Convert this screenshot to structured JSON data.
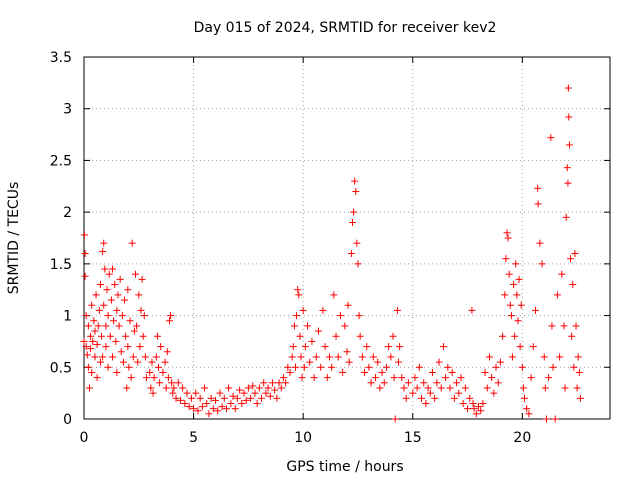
{
  "chart_data": {
    "type": "scatter",
    "title": "Day 015 of 2024, SRMTID for receiver kev2",
    "xlabel": "GPS time / hours",
    "ylabel": "SRMTID / TECUs",
    "xlim": [
      0,
      24
    ],
    "ylim": [
      0,
      3.5
    ],
    "xticks": [
      0,
      5,
      10,
      15,
      20
    ],
    "xtick_labels": [
      "0",
      "5",
      "10",
      "15",
      "20"
    ],
    "yticks": [
      0,
      0.5,
      1,
      1.5,
      2,
      2.5,
      3,
      3.5
    ],
    "ytick_labels": [
      "0",
      "0.5",
      "1",
      "1.5",
      "2",
      "2.5",
      "3",
      "3.5"
    ],
    "grid": true,
    "marker": "+",
    "color": "#ff0000",
    "series": [
      {
        "name": "SRMTID",
        "points": [
          [
            0.0,
            0.75
          ],
          [
            0.02,
            1.78
          ],
          [
            0.05,
            1.6
          ],
          [
            0.05,
            1.38
          ],
          [
            0.1,
            1.0
          ],
          [
            0.1,
            0.7
          ],
          [
            0.15,
            0.62
          ],
          [
            0.2,
            0.9
          ],
          [
            0.2,
            0.5
          ],
          [
            0.25,
            0.3
          ],
          [
            0.3,
            0.8
          ],
          [
            0.3,
            0.68
          ],
          [
            0.35,
            1.1
          ],
          [
            0.35,
            0.45
          ],
          [
            0.4,
            0.75
          ],
          [
            0.45,
            0.95
          ],
          [
            0.5,
            0.6
          ],
          [
            0.5,
            0.85
          ],
          [
            0.55,
            1.2
          ],
          [
            0.6,
            0.4
          ],
          [
            0.6,
            0.72
          ],
          [
            0.65,
            0.9
          ],
          [
            0.7,
            1.05
          ],
          [
            0.75,
            1.3
          ],
          [
            0.75,
            0.55
          ],
          [
            0.8,
            0.8
          ],
          [
            0.85,
            1.62
          ],
          [
            0.85,
            0.6
          ],
          [
            0.9,
            1.7
          ],
          [
            0.9,
            1.1
          ],
          [
            0.95,
            1.45
          ],
          [
            1.0,
            0.9
          ],
          [
            1.0,
            0.7
          ],
          [
            1.05,
            1.25
          ],
          [
            1.1,
            0.5
          ],
          [
            1.1,
            1.0
          ],
          [
            1.15,
            1.4
          ],
          [
            1.2,
            0.8
          ],
          [
            1.25,
            1.15
          ],
          [
            1.3,
            0.6
          ],
          [
            1.3,
            1.45
          ],
          [
            1.35,
            0.95
          ],
          [
            1.4,
            1.3
          ],
          [
            1.45,
            0.75
          ],
          [
            1.5,
            1.05
          ],
          [
            1.5,
            0.45
          ],
          [
            1.55,
            1.2
          ],
          [
            1.6,
            0.9
          ],
          [
            1.65,
            1.35
          ],
          [
            1.7,
            0.65
          ],
          [
            1.75,
            1.0
          ],
          [
            1.8,
            0.55
          ],
          [
            1.85,
            1.15
          ],
          [
            1.9,
            0.8
          ],
          [
            1.95,
            0.3
          ],
          [
            2.0,
            0.7
          ],
          [
            2.0,
            1.25
          ],
          [
            2.05,
            0.5
          ],
          [
            2.1,
            0.95
          ],
          [
            2.15,
            0.4
          ],
          [
            2.2,
            1.7
          ],
          [
            2.25,
            0.6
          ],
          [
            2.3,
            0.85
          ],
          [
            2.35,
            1.4
          ],
          [
            2.4,
            0.9
          ],
          [
            2.45,
            0.55
          ],
          [
            2.5,
            1.2
          ],
          [
            2.55,
            0.7
          ],
          [
            2.6,
            1.05
          ],
          [
            2.65,
            1.35
          ],
          [
            2.7,
            0.8
          ],
          [
            2.75,
            1.0
          ],
          [
            2.8,
            0.6
          ],
          [
            2.85,
            0.4
          ],
          [
            3.0,
            0.45
          ],
          [
            3.05,
            0.3
          ],
          [
            3.1,
            0.55
          ],
          [
            3.15,
            0.25
          ],
          [
            3.2,
            0.4
          ],
          [
            3.3,
            0.6
          ],
          [
            3.35,
            0.8
          ],
          [
            3.4,
            0.5
          ],
          [
            3.45,
            0.35
          ],
          [
            3.5,
            0.7
          ],
          [
            3.6,
            0.45
          ],
          [
            3.7,
            0.55
          ],
          [
            3.75,
            0.3
          ],
          [
            3.8,
            0.65
          ],
          [
            3.85,
            0.4
          ],
          [
            3.9,
            0.95
          ],
          [
            3.95,
            1.0
          ],
          [
            4.0,
            0.35
          ],
          [
            4.05,
            0.25
          ],
          [
            4.1,
            0.3
          ],
          [
            4.2,
            0.2
          ],
          [
            4.3,
            0.35
          ],
          [
            4.4,
            0.18
          ],
          [
            4.5,
            0.3
          ],
          [
            4.6,
            0.15
          ],
          [
            4.7,
            0.25
          ],
          [
            4.8,
            0.12
          ],
          [
            4.9,
            0.2
          ],
          [
            5.0,
            0.1
          ],
          [
            5.1,
            0.25
          ],
          [
            5.2,
            0.08
          ],
          [
            5.3,
            0.2
          ],
          [
            5.4,
            0.12
          ],
          [
            5.5,
            0.3
          ],
          [
            5.6,
            0.15
          ],
          [
            5.7,
            0.05
          ],
          [
            5.8,
            0.2
          ],
          [
            5.9,
            0.1
          ],
          [
            6.0,
            0.18
          ],
          [
            6.1,
            0.08
          ],
          [
            6.2,
            0.25
          ],
          [
            6.3,
            0.12
          ],
          [
            6.4,
            0.2
          ],
          [
            6.5,
            0.1
          ],
          [
            6.6,
            0.3
          ],
          [
            6.7,
            0.15
          ],
          [
            6.8,
            0.22
          ],
          [
            6.9,
            0.1
          ],
          [
            7.0,
            0.2
          ],
          [
            7.1,
            0.28
          ],
          [
            7.2,
            0.15
          ],
          [
            7.3,
            0.25
          ],
          [
            7.4,
            0.18
          ],
          [
            7.5,
            0.3
          ],
          [
            7.6,
            0.2
          ],
          [
            7.7,
            0.32
          ],
          [
            7.8,
            0.25
          ],
          [
            7.9,
            0.15
          ],
          [
            8.0,
            0.3
          ],
          [
            8.1,
            0.2
          ],
          [
            8.2,
            0.35
          ],
          [
            8.3,
            0.25
          ],
          [
            8.4,
            0.3
          ],
          [
            8.5,
            0.22
          ],
          [
            8.6,
            0.35
          ],
          [
            8.7,
            0.28
          ],
          [
            8.8,
            0.2
          ],
          [
            8.9,
            0.35
          ],
          [
            9.0,
            0.3
          ],
          [
            9.1,
            0.4
          ],
          [
            9.2,
            0.35
          ],
          [
            9.3,
            0.5
          ],
          [
            9.4,
            0.45
          ],
          [
            9.5,
            0.6
          ],
          [
            9.55,
            0.7
          ],
          [
            9.6,
            0.9
          ],
          [
            9.65,
            0.5
          ],
          [
            9.7,
            1.0
          ],
          [
            9.75,
            1.25
          ],
          [
            9.8,
            1.2
          ],
          [
            9.85,
            0.8
          ],
          [
            9.9,
            0.6
          ],
          [
            9.95,
            0.4
          ],
          [
            10.0,
            1.05
          ],
          [
            10.05,
            0.5
          ],
          [
            10.1,
            0.7
          ],
          [
            10.2,
            0.9
          ],
          [
            10.3,
            0.55
          ],
          [
            10.4,
            0.75
          ],
          [
            10.5,
            0.4
          ],
          [
            10.6,
            0.6
          ],
          [
            10.7,
            0.85
          ],
          [
            10.8,
            0.5
          ],
          [
            10.9,
            1.05
          ],
          [
            11.0,
            0.7
          ],
          [
            11.1,
            0.4
          ],
          [
            11.2,
            0.6
          ],
          [
            11.3,
            0.5
          ],
          [
            11.4,
            1.2
          ],
          [
            11.5,
            0.8
          ],
          [
            11.6,
            0.6
          ],
          [
            11.7,
            1.0
          ],
          [
            11.8,
            0.45
          ],
          [
            11.9,
            0.9
          ],
          [
            12.0,
            0.65
          ],
          [
            12.05,
            1.1
          ],
          [
            12.1,
            0.55
          ],
          [
            12.2,
            1.6
          ],
          [
            12.25,
            1.9
          ],
          [
            12.3,
            2.0
          ],
          [
            12.35,
            2.3
          ],
          [
            12.4,
            2.2
          ],
          [
            12.45,
            1.7
          ],
          [
            12.5,
            1.5
          ],
          [
            12.55,
            1.0
          ],
          [
            12.6,
            0.8
          ],
          [
            12.7,
            0.6
          ],
          [
            12.8,
            0.45
          ],
          [
            12.9,
            0.7
          ],
          [
            13.0,
            0.5
          ],
          [
            13.1,
            0.35
          ],
          [
            13.2,
            0.6
          ],
          [
            13.3,
            0.4
          ],
          [
            13.4,
            0.55
          ],
          [
            13.5,
            0.3
          ],
          [
            13.6,
            0.45
          ],
          [
            13.7,
            0.35
          ],
          [
            13.8,
            0.5
          ],
          [
            13.9,
            0.7
          ],
          [
            14.0,
            0.6
          ],
          [
            14.1,
            0.8
          ],
          [
            14.15,
            0.4
          ],
          [
            14.2,
            0.0
          ],
          [
            14.3,
            1.05
          ],
          [
            14.35,
            0.55
          ],
          [
            14.4,
            0.7
          ],
          [
            14.5,
            0.4
          ],
          [
            14.6,
            0.3
          ],
          [
            14.7,
            0.2
          ],
          [
            14.8,
            0.35
          ],
          [
            15.0,
            0.25
          ],
          [
            15.1,
            0.4
          ],
          [
            15.2,
            0.3
          ],
          [
            15.3,
            0.5
          ],
          [
            15.4,
            0.2
          ],
          [
            15.5,
            0.35
          ],
          [
            15.6,
            0.15
          ],
          [
            15.7,
            0.3
          ],
          [
            15.8,
            0.25
          ],
          [
            15.9,
            0.45
          ],
          [
            16.0,
            0.2
          ],
          [
            16.1,
            0.35
          ],
          [
            16.2,
            0.55
          ],
          [
            16.3,
            0.3
          ],
          [
            16.4,
            0.7
          ],
          [
            16.5,
            0.4
          ],
          [
            16.6,
            0.5
          ],
          [
            16.7,
            0.3
          ],
          [
            16.8,
            0.45
          ],
          [
            16.9,
            0.2
          ],
          [
            17.0,
            0.35
          ],
          [
            17.1,
            0.25
          ],
          [
            17.2,
            0.4
          ],
          [
            17.3,
            0.15
          ],
          [
            17.4,
            0.3
          ],
          [
            17.5,
            0.1
          ],
          [
            17.6,
            0.2
          ],
          [
            17.7,
            1.05
          ],
          [
            17.75,
            0.15
          ],
          [
            17.8,
            0.1
          ],
          [
            17.9,
            0.05
          ],
          [
            18.0,
            0.12
          ],
          [
            18.1,
            0.08
          ],
          [
            18.2,
            0.15
          ],
          [
            18.3,
            0.45
          ],
          [
            18.4,
            0.3
          ],
          [
            18.5,
            0.6
          ],
          [
            18.6,
            0.4
          ],
          [
            18.7,
            0.25
          ],
          [
            18.8,
            0.5
          ],
          [
            18.9,
            0.35
          ],
          [
            19.0,
            0.55
          ],
          [
            19.1,
            0.8
          ],
          [
            19.2,
            1.2
          ],
          [
            19.25,
            1.55
          ],
          [
            19.3,
            1.8
          ],
          [
            19.35,
            1.75
          ],
          [
            19.4,
            1.4
          ],
          [
            19.45,
            1.1
          ],
          [
            19.5,
            1.0
          ],
          [
            19.55,
            0.6
          ],
          [
            19.6,
            1.3
          ],
          [
            19.65,
            0.8
          ],
          [
            19.7,
            1.5
          ],
          [
            19.75,
            1.2
          ],
          [
            19.8,
            0.95
          ],
          [
            19.85,
            1.35
          ],
          [
            19.9,
            0.7
          ],
          [
            19.95,
            1.1
          ],
          [
            20.0,
            0.5
          ],
          [
            20.05,
            0.3
          ],
          [
            20.1,
            0.2
          ],
          [
            20.2,
            0.1
          ],
          [
            20.3,
            0.05
          ],
          [
            20.4,
            0.4
          ],
          [
            20.5,
            0.7
          ],
          [
            20.6,
            1.05
          ],
          [
            20.7,
            2.23
          ],
          [
            20.72,
            2.08
          ],
          [
            20.8,
            1.7
          ],
          [
            20.9,
            1.5
          ],
          [
            21.0,
            0.6
          ],
          [
            21.05,
            0.3
          ],
          [
            21.1,
            0.0
          ],
          [
            21.2,
            0.4
          ],
          [
            21.3,
            2.72
          ],
          [
            21.35,
            0.9
          ],
          [
            21.4,
            0.5
          ],
          [
            21.5,
            0.0
          ],
          [
            21.6,
            1.2
          ],
          [
            21.7,
            0.6
          ],
          [
            21.8,
            1.4
          ],
          [
            21.9,
            0.9
          ],
          [
            21.95,
            0.3
          ],
          [
            22.0,
            1.95
          ],
          [
            22.05,
            2.43
          ],
          [
            22.08,
            2.28
          ],
          [
            22.1,
            3.2
          ],
          [
            22.12,
            2.92
          ],
          [
            22.15,
            2.65
          ],
          [
            22.2,
            1.55
          ],
          [
            22.25,
            0.8
          ],
          [
            22.3,
            1.3
          ],
          [
            22.35,
            0.5
          ],
          [
            22.4,
            1.6
          ],
          [
            22.45,
            0.9
          ],
          [
            22.5,
            0.3
          ],
          [
            22.55,
            0.6
          ],
          [
            22.6,
            0.45
          ],
          [
            22.65,
            0.2
          ]
        ]
      }
    ]
  }
}
